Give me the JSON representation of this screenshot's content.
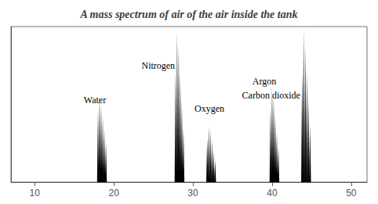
{
  "chart_data": {
    "type": "spectrum",
    "title": "A mass spectrum of air of the air inside the tank",
    "xlim": [
      7,
      52
    ],
    "xticks": [
      10,
      20,
      30,
      40,
      50
    ],
    "ylim": [
      0,
      1.0
    ],
    "yticks": [],
    "tick_labels": "x",
    "grid": false,
    "series": [
      {
        "color": "#000000",
        "x": [
          18.0,
          18.2,
          18.4,
          18.6,
          18.8,
          19.0
        ],
        "values": [
          0.46,
          0.55,
          0.5,
          0.42,
          0.34,
          0.25
        ]
      },
      {
        "color": "#000000",
        "x": [
          27.8,
          28.0,
          28.2,
          28.4,
          28.6,
          28.8
        ],
        "values": [
          0.72,
          0.97,
          0.88,
          0.7,
          0.52,
          0.35
        ]
      },
      {
        "color": "#000000",
        "x": [
          31.8,
          32.0,
          32.2,
          32.4,
          32.6,
          32.8
        ],
        "values": [
          0.28,
          0.36,
          0.33,
          0.27,
          0.2,
          0.14
        ]
      },
      {
        "color": "#000000",
        "x": [
          39.8,
          40.0,
          40.2,
          40.4,
          40.6,
          40.8
        ],
        "values": [
          0.48,
          0.62,
          0.56,
          0.44,
          0.32,
          0.22
        ]
      },
      {
        "color": "#000000",
        "x": [
          43.8,
          44.0,
          44.2,
          44.4,
          44.6,
          44.8
        ],
        "values": [
          0.72,
          0.98,
          0.88,
          0.72,
          0.54,
          0.36
        ]
      }
    ],
    "annotations": [
      {
        "text": "Water",
        "x": 16.2,
        "y": 0.5
      },
      {
        "text": "Nitrogen",
        "x": 23.5,
        "y": 0.72
      },
      {
        "text": "Oxygen",
        "x": 30.2,
        "y": 0.44
      },
      {
        "text": "Argon",
        "x": 37.5,
        "y": 0.62
      },
      {
        "text": "Carbon dioxide",
        "x": 36.2,
        "y": 0.53
      }
    ]
  }
}
